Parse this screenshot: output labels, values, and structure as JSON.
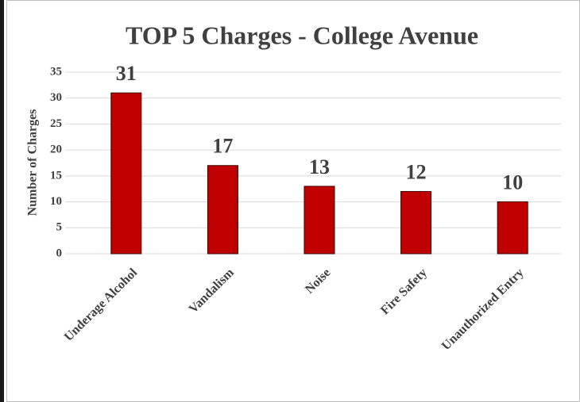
{
  "chart_data": {
    "type": "bar",
    "title": "TOP 5 Charges - College Avenue",
    "ylabel": "Number of Charges",
    "categories": [
      "Underage Alcohol",
      "Vandalism",
      "Noise",
      "Fire Safety",
      "Unauthorized Entry"
    ],
    "values": [
      31,
      17,
      13,
      12,
      10
    ],
    "color": "#c00000",
    "ylim": [
      0,
      35
    ],
    "yticks": [
      0,
      5,
      10,
      15,
      20,
      25,
      30,
      35
    ],
    "grid": true
  }
}
